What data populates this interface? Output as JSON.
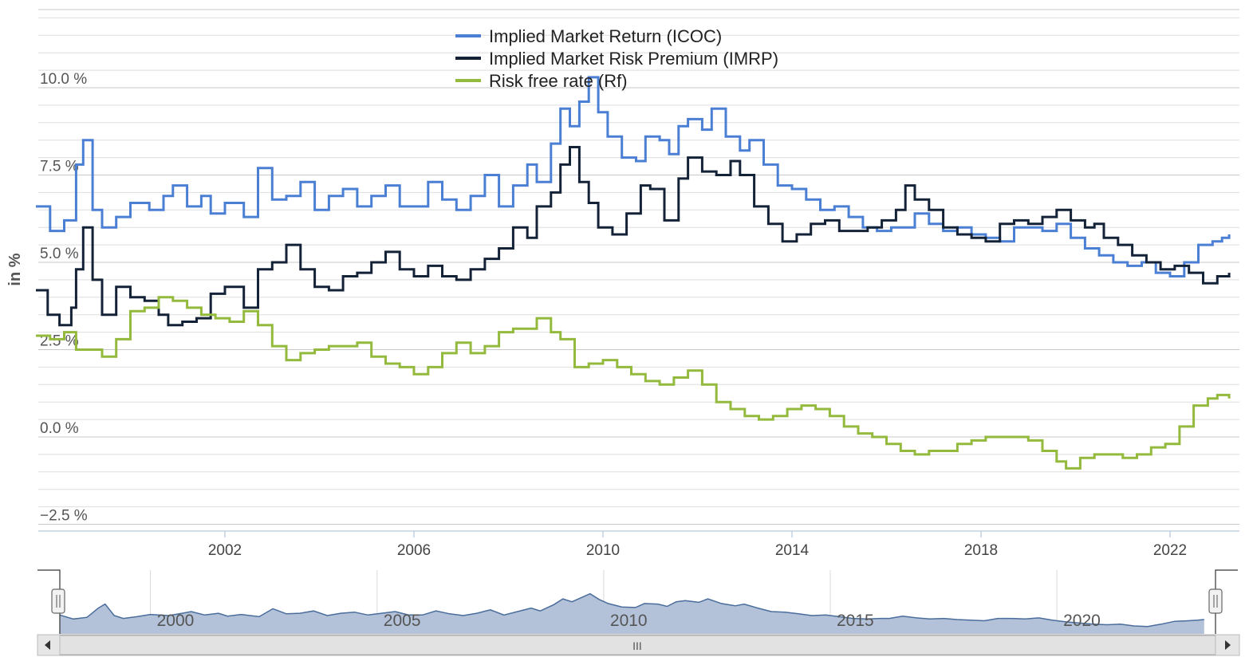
{
  "chart_data": {
    "type": "line",
    "ylabel": "in %",
    "yticks": [
      "−2.5 %",
      "0.0 %",
      "2.5 %",
      "5.0 %",
      "7.5 %",
      "10.0 %"
    ],
    "ytick_values": [
      -2.5,
      0,
      2.5,
      5,
      7.5,
      10
    ],
    "xticks": [
      "2002",
      "2006",
      "2010",
      "2014",
      "2018",
      "2022"
    ],
    "xtick_values": [
      2002,
      2006,
      2010,
      2014,
      2018,
      2022
    ],
    "xlim": [
      1998.0,
      2023.25
    ],
    "ylim": [
      -2.5,
      12.5
    ],
    "grid": true,
    "legend_position": "top-center",
    "series": [
      {
        "name": "Implied Market Return (ICOC)",
        "color": "#4a7fd4",
        "points": [
          [
            1998.0,
            6.6
          ],
          [
            1998.3,
            5.9
          ],
          [
            1998.6,
            6.2
          ],
          [
            1998.85,
            7.8
          ],
          [
            1999.0,
            8.5
          ],
          [
            1999.2,
            6.5
          ],
          [
            1999.4,
            6.0
          ],
          [
            1999.7,
            6.3
          ],
          [
            2000.0,
            6.7
          ],
          [
            2000.4,
            6.5
          ],
          [
            2000.7,
            6.9
          ],
          [
            2000.9,
            7.2
          ],
          [
            2001.2,
            6.6
          ],
          [
            2001.5,
            6.9
          ],
          [
            2001.7,
            6.4
          ],
          [
            2002.0,
            6.7
          ],
          [
            2002.4,
            6.3
          ],
          [
            2002.7,
            7.7
          ],
          [
            2003.0,
            6.8
          ],
          [
            2003.3,
            6.9
          ],
          [
            2003.6,
            7.3
          ],
          [
            2003.9,
            6.5
          ],
          [
            2004.2,
            6.9
          ],
          [
            2004.5,
            7.1
          ],
          [
            2004.8,
            6.6
          ],
          [
            2005.1,
            6.9
          ],
          [
            2005.4,
            7.2
          ],
          [
            2005.7,
            6.6
          ],
          [
            2006.0,
            6.6
          ],
          [
            2006.3,
            7.3
          ],
          [
            2006.6,
            6.8
          ],
          [
            2006.9,
            6.5
          ],
          [
            2007.2,
            6.9
          ],
          [
            2007.5,
            7.5
          ],
          [
            2007.8,
            6.6
          ],
          [
            2008.1,
            7.2
          ],
          [
            2008.4,
            7.8
          ],
          [
            2008.6,
            7.3
          ],
          [
            2008.9,
            8.4
          ],
          [
            2009.1,
            9.4
          ],
          [
            2009.3,
            8.9
          ],
          [
            2009.5,
            9.6
          ],
          [
            2009.7,
            10.3
          ],
          [
            2009.9,
            9.3
          ],
          [
            2010.1,
            8.6
          ],
          [
            2010.4,
            8.0
          ],
          [
            2010.7,
            7.9
          ],
          [
            2010.9,
            8.6
          ],
          [
            2011.2,
            8.5
          ],
          [
            2011.4,
            8.1
          ],
          [
            2011.6,
            8.9
          ],
          [
            2011.8,
            9.1
          ],
          [
            2012.1,
            8.8
          ],
          [
            2012.3,
            9.4
          ],
          [
            2012.6,
            8.6
          ],
          [
            2012.9,
            8.2
          ],
          [
            2013.1,
            8.5
          ],
          [
            2013.4,
            7.8
          ],
          [
            2013.7,
            7.2
          ],
          [
            2014.0,
            7.1
          ],
          [
            2014.3,
            6.8
          ],
          [
            2014.6,
            6.5
          ],
          [
            2014.9,
            6.6
          ],
          [
            2015.2,
            6.3
          ],
          [
            2015.5,
            6.0
          ],
          [
            2015.8,
            5.9
          ],
          [
            2016.1,
            6.0
          ],
          [
            2016.3,
            6.0
          ],
          [
            2016.6,
            6.4
          ],
          [
            2016.9,
            6.1
          ],
          [
            2017.2,
            5.9
          ],
          [
            2017.5,
            6.0
          ],
          [
            2017.8,
            5.8
          ],
          [
            2018.1,
            5.7
          ],
          [
            2018.4,
            5.6
          ],
          [
            2018.7,
            6.0
          ],
          [
            2019.0,
            6.0
          ],
          [
            2019.3,
            5.9
          ],
          [
            2019.6,
            6.1
          ],
          [
            2019.9,
            5.7
          ],
          [
            2020.2,
            5.4
          ],
          [
            2020.5,
            5.2
          ],
          [
            2020.8,
            5.0
          ],
          [
            2021.1,
            4.9
          ],
          [
            2021.4,
            5.0
          ],
          [
            2021.7,
            4.7
          ],
          [
            2022.0,
            4.6
          ],
          [
            2022.3,
            5.0
          ],
          [
            2022.6,
            5.5
          ],
          [
            2022.9,
            5.6
          ],
          [
            2023.1,
            5.7
          ],
          [
            2023.25,
            5.8
          ]
        ]
      },
      {
        "name": "Implied Market Risk Premium (IMRP)",
        "color": "#142238",
        "points": [
          [
            1998.0,
            4.2
          ],
          [
            1998.25,
            3.5
          ],
          [
            1998.5,
            3.2
          ],
          [
            1998.75,
            3.7
          ],
          [
            1998.85,
            4.8
          ],
          [
            1999.0,
            6.0
          ],
          [
            1999.2,
            4.5
          ],
          [
            1999.4,
            3.5
          ],
          [
            1999.7,
            4.3
          ],
          [
            2000.0,
            4.0
          ],
          [
            2000.3,
            3.9
          ],
          [
            2000.6,
            3.5
          ],
          [
            2000.8,
            3.2
          ],
          [
            2001.1,
            3.3
          ],
          [
            2001.4,
            3.4
          ],
          [
            2001.7,
            4.1
          ],
          [
            2002.0,
            4.3
          ],
          [
            2002.4,
            3.7
          ],
          [
            2002.7,
            4.8
          ],
          [
            2003.0,
            5.0
          ],
          [
            2003.3,
            5.5
          ],
          [
            2003.6,
            4.8
          ],
          [
            2003.9,
            4.3
          ],
          [
            2004.2,
            4.2
          ],
          [
            2004.5,
            4.6
          ],
          [
            2004.8,
            4.7
          ],
          [
            2005.1,
            5.0
          ],
          [
            2005.4,
            5.3
          ],
          [
            2005.7,
            4.8
          ],
          [
            2006.0,
            4.6
          ],
          [
            2006.3,
            4.9
          ],
          [
            2006.6,
            4.6
          ],
          [
            2006.9,
            4.5
          ],
          [
            2007.2,
            4.8
          ],
          [
            2007.5,
            5.1
          ],
          [
            2007.8,
            5.4
          ],
          [
            2008.1,
            6.0
          ],
          [
            2008.4,
            5.7
          ],
          [
            2008.6,
            6.6
          ],
          [
            2008.9,
            7.0
          ],
          [
            2009.1,
            7.8
          ],
          [
            2009.3,
            8.3
          ],
          [
            2009.5,
            7.3
          ],
          [
            2009.7,
            6.7
          ],
          [
            2009.9,
            6.0
          ],
          [
            2010.2,
            5.8
          ],
          [
            2010.5,
            6.4
          ],
          [
            2010.8,
            7.2
          ],
          [
            2011.0,
            7.1
          ],
          [
            2011.3,
            6.2
          ],
          [
            2011.6,
            7.4
          ],
          [
            2011.8,
            8.0
          ],
          [
            2012.1,
            7.6
          ],
          [
            2012.4,
            7.5
          ],
          [
            2012.7,
            7.9
          ],
          [
            2012.9,
            7.5
          ],
          [
            2013.2,
            6.6
          ],
          [
            2013.5,
            6.1
          ],
          [
            2013.8,
            5.6
          ],
          [
            2014.1,
            5.8
          ],
          [
            2014.4,
            6.1
          ],
          [
            2014.7,
            6.2
          ],
          [
            2015.0,
            5.9
          ],
          [
            2015.3,
            5.9
          ],
          [
            2015.6,
            6.0
          ],
          [
            2015.9,
            6.2
          ],
          [
            2016.2,
            6.5
          ],
          [
            2016.4,
            7.2
          ],
          [
            2016.6,
            6.8
          ],
          [
            2016.9,
            6.5
          ],
          [
            2017.2,
            6.0
          ],
          [
            2017.5,
            5.8
          ],
          [
            2017.8,
            5.7
          ],
          [
            2018.1,
            5.6
          ],
          [
            2018.4,
            6.1
          ],
          [
            2018.7,
            6.2
          ],
          [
            2019.0,
            6.1
          ],
          [
            2019.3,
            6.3
          ],
          [
            2019.6,
            6.5
          ],
          [
            2019.9,
            6.2
          ],
          [
            2020.2,
            6.0
          ],
          [
            2020.4,
            6.1
          ],
          [
            2020.6,
            5.7
          ],
          [
            2020.9,
            5.5
          ],
          [
            2021.2,
            5.2
          ],
          [
            2021.5,
            5.0
          ],
          [
            2021.8,
            4.8
          ],
          [
            2022.1,
            4.9
          ],
          [
            2022.4,
            4.7
          ],
          [
            2022.7,
            4.4
          ],
          [
            2023.0,
            4.6
          ],
          [
            2023.25,
            4.7
          ]
        ]
      },
      {
        "name": "Risk free rate (Rf)",
        "color": "#93ba3c",
        "points": [
          [
            1998.0,
            2.9
          ],
          [
            1998.3,
            2.8
          ],
          [
            1998.6,
            3.0
          ],
          [
            1998.85,
            2.5
          ],
          [
            1999.1,
            2.5
          ],
          [
            1999.4,
            2.3
          ],
          [
            1999.7,
            2.8
          ],
          [
            2000.0,
            3.6
          ],
          [
            2000.3,
            3.7
          ],
          [
            2000.6,
            4.0
          ],
          [
            2000.9,
            3.9
          ],
          [
            2001.2,
            3.7
          ],
          [
            2001.5,
            3.5
          ],
          [
            2001.8,
            3.4
          ],
          [
            2002.1,
            3.3
          ],
          [
            2002.4,
            3.6
          ],
          [
            2002.7,
            3.2
          ],
          [
            2003.0,
            2.6
          ],
          [
            2003.3,
            2.2
          ],
          [
            2003.6,
            2.4
          ],
          [
            2003.9,
            2.5
          ],
          [
            2004.2,
            2.6
          ],
          [
            2004.5,
            2.6
          ],
          [
            2004.8,
            2.7
          ],
          [
            2005.1,
            2.3
          ],
          [
            2005.4,
            2.1
          ],
          [
            2005.7,
            2.0
          ],
          [
            2006.0,
            1.8
          ],
          [
            2006.3,
            2.0
          ],
          [
            2006.6,
            2.4
          ],
          [
            2006.9,
            2.7
          ],
          [
            2007.2,
            2.4
          ],
          [
            2007.5,
            2.6
          ],
          [
            2007.8,
            3.0
          ],
          [
            2008.1,
            3.1
          ],
          [
            2008.4,
            3.1
          ],
          [
            2008.6,
            3.4
          ],
          [
            2008.9,
            3.0
          ],
          [
            2009.1,
            2.8
          ],
          [
            2009.4,
            2.0
          ],
          [
            2009.7,
            2.1
          ],
          [
            2010.0,
            2.2
          ],
          [
            2010.3,
            2.0
          ],
          [
            2010.6,
            1.8
          ],
          [
            2010.9,
            1.6
          ],
          [
            2011.2,
            1.5
          ],
          [
            2011.5,
            1.7
          ],
          [
            2011.8,
            1.9
          ],
          [
            2012.1,
            1.5
          ],
          [
            2012.4,
            1.0
          ],
          [
            2012.7,
            0.8
          ],
          [
            2013.0,
            0.6
          ],
          [
            2013.3,
            0.5
          ],
          [
            2013.6,
            0.6
          ],
          [
            2013.9,
            0.8
          ],
          [
            2014.2,
            0.9
          ],
          [
            2014.5,
            0.8
          ],
          [
            2014.8,
            0.6
          ],
          [
            2015.1,
            0.3
          ],
          [
            2015.4,
            0.1
          ],
          [
            2015.7,
            0.0
          ],
          [
            2016.0,
            -0.2
          ],
          [
            2016.3,
            -0.4
          ],
          [
            2016.6,
            -0.5
          ],
          [
            2016.9,
            -0.4
          ],
          [
            2017.2,
            -0.4
          ],
          [
            2017.5,
            -0.2
          ],
          [
            2017.8,
            -0.1
          ],
          [
            2018.1,
            0.0
          ],
          [
            2018.4,
            0.0
          ],
          [
            2018.7,
            0.0
          ],
          [
            2019.0,
            -0.1
          ],
          [
            2019.3,
            -0.4
          ],
          [
            2019.6,
            -0.7
          ],
          [
            2019.8,
            -0.9
          ],
          [
            2020.1,
            -0.6
          ],
          [
            2020.4,
            -0.5
          ],
          [
            2020.7,
            -0.5
          ],
          [
            2021.0,
            -0.6
          ],
          [
            2021.3,
            -0.5
          ],
          [
            2021.6,
            -0.3
          ],
          [
            2021.9,
            -0.2
          ],
          [
            2022.2,
            0.3
          ],
          [
            2022.5,
            0.9
          ],
          [
            2022.8,
            1.1
          ],
          [
            2023.0,
            1.2
          ],
          [
            2023.25,
            1.1
          ]
        ]
      }
    ]
  },
  "navigator": {
    "labels": [
      "2000",
      "2005",
      "2010",
      "2015",
      "2020"
    ],
    "label_years": [
      2000,
      2005,
      2010,
      2015,
      2020
    ],
    "xlim": [
      1998.0,
      2023.5
    ],
    "fill_color": "#b3c2d9",
    "line_color": "#4a6d9c",
    "scroll_glyph": "III",
    "left_arrow_icon": "caret-left-icon",
    "right_arrow_icon": "caret-right-icon"
  }
}
